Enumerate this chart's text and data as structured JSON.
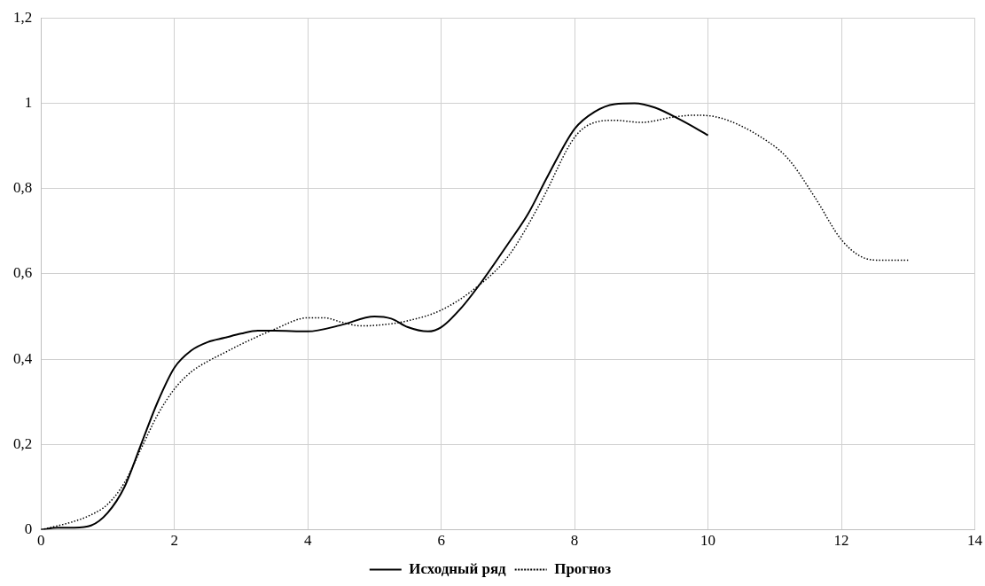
{
  "chart_data": {
    "type": "line",
    "xlim": [
      0,
      14
    ],
    "xticks": [
      0,
      2,
      4,
      6,
      8,
      10,
      12,
      14
    ],
    "ylim": [
      0,
      1.2
    ],
    "yticks": [
      {
        "value": 0,
        "label": "0"
      },
      {
        "value": 0.2,
        "label": "0,2"
      },
      {
        "value": 0.4,
        "label": "0,4"
      },
      {
        "value": 0.6,
        "label": "0,6"
      },
      {
        "value": 0.8,
        "label": "0,8"
      },
      {
        "value": 1,
        "label": "1"
      },
      {
        "value": 1.2,
        "label": "1,2"
      }
    ],
    "grid": true,
    "legend": "bottom",
    "marker": "none",
    "series": [
      {
        "name": "Исходный ряд",
        "color": "#000000",
        "line_style": "solid",
        "x": [
          0,
          0.25,
          0.5,
          0.75,
          1,
          1.25,
          1.5,
          1.75,
          2,
          2.25,
          2.5,
          2.75,
          3,
          3.25,
          3.5,
          4,
          4.5,
          5,
          5.25,
          5.5,
          5.8,
          6,
          6.3,
          6.6,
          7,
          7.3,
          7.6,
          8,
          8.3,
          8.6,
          8.9,
          9.2,
          9.6,
          10
        ],
        "values": [
          0,
          0.005,
          0.005,
          0.01,
          0.04,
          0.1,
          0.2,
          0.3,
          0.38,
          0.42,
          0.44,
          0.45,
          0.46,
          0.467,
          0.467,
          0.465,
          0.48,
          0.5,
          0.495,
          0.475,
          0.465,
          0.475,
          0.52,
          0.58,
          0.67,
          0.74,
          0.83,
          0.94,
          0.98,
          0.998,
          1,
          0.99,
          0.96,
          0.925
        ]
      },
      {
        "name": "Прогноз",
        "color": "#000000",
        "line_style": "dotted",
        "x": [
          0,
          0.5,
          0.75,
          1,
          1.25,
          1.5,
          1.75,
          2,
          2.25,
          2.5,
          2.75,
          3,
          3.5,
          4,
          4.25,
          4.5,
          4.8,
          5.2,
          5.5,
          6,
          6.5,
          7,
          7.5,
          8,
          8.3,
          8.6,
          9,
          9.5,
          9.8,
          10.2,
          10.8,
          11.2,
          11.6,
          12,
          12.3,
          12.6,
          13
        ],
        "values": [
          0,
          0.02,
          0.035,
          0.06,
          0.11,
          0.19,
          0.27,
          0.33,
          0.37,
          0.395,
          0.415,
          0.435,
          0.47,
          0.497,
          0.497,
          0.487,
          0.478,
          0.482,
          0.49,
          0.515,
          0.565,
          0.64,
          0.77,
          0.92,
          0.955,
          0.96,
          0.955,
          0.968,
          0.972,
          0.965,
          0.92,
          0.87,
          0.78,
          0.68,
          0.64,
          0.632,
          0.632
        ]
      }
    ]
  }
}
